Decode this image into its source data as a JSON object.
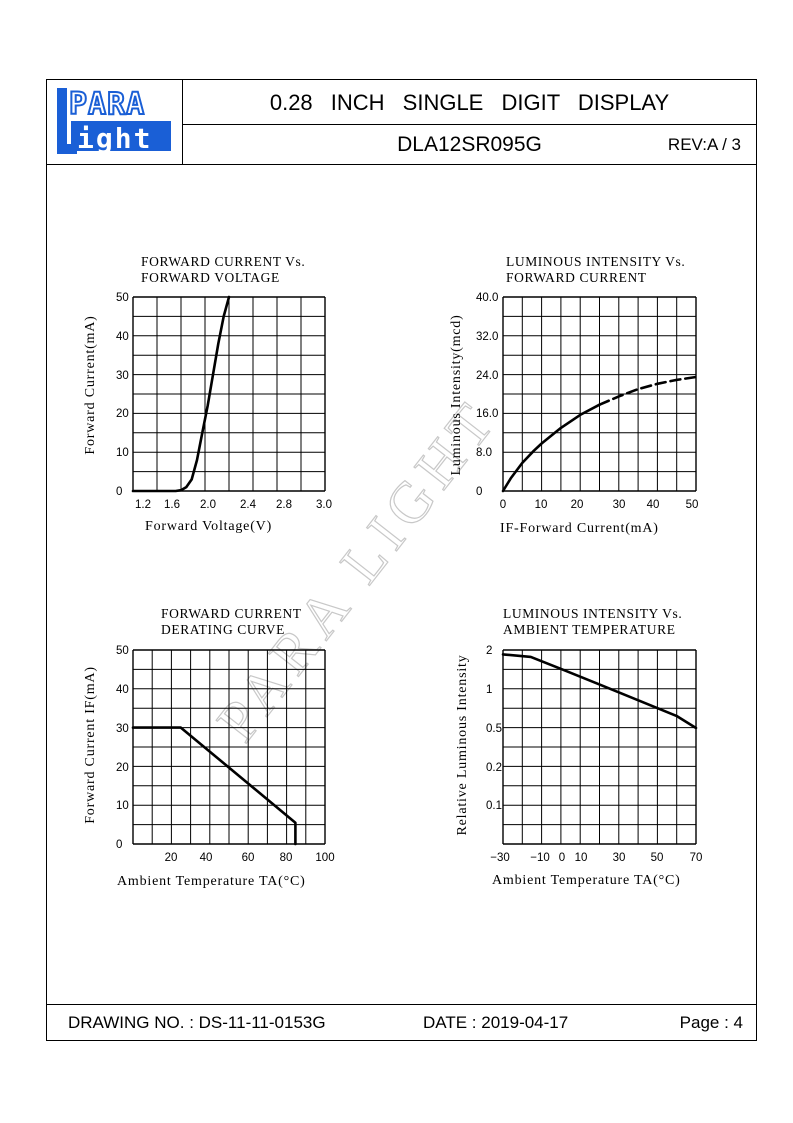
{
  "header": {
    "logo_line1": "PARA",
    "logo_line2": "ight",
    "title": "0.28 INCH SINGLE DIGIT DISPLAY",
    "part_number": "DLA12SR095G",
    "revision": "REV:A / 3"
  },
  "watermark": "PARA LIGHT",
  "footer": {
    "drawing_no": "DRAWING NO. : DS-11-11-0153G",
    "date": "DATE : 2019-04-17",
    "page": "Page : 4"
  },
  "colors": {
    "line": "#000000",
    "logo_blue": "#1a5fd6",
    "watermark": "#cccccc"
  },
  "chart_data": [
    {
      "type": "line",
      "title": "FORWARD CURRENT Vs.\nFORWARD VOLTAGE",
      "title_lines": [
        "FORWARD CURRENT Vs.",
        "FORWARD VOLTAGE"
      ],
      "xlabel": "Forward Voltage(V)",
      "ylabel": "Forward Current(mA)",
      "xticks": [
        "1.2",
        "1.6",
        "2.0",
        "2.4",
        "2.8",
        "3.0"
      ],
      "yticks": [
        "0",
        "10",
        "20",
        "30",
        "40",
        "50"
      ],
      "xlim": [
        1.2,
        3.0
      ],
      "ylim": [
        0,
        50
      ],
      "grid": true,
      "series": [
        {
          "x": [
            1.2,
            1.3,
            1.4,
            1.5,
            1.6,
            1.65,
            1.7,
            1.75,
            1.8,
            1.85,
            1.9,
            1.95,
            2.0,
            2.05,
            2.1
          ],
          "y": [
            0,
            0,
            0,
            0,
            0,
            0.2,
            1,
            3,
            8,
            15,
            22,
            30,
            38,
            45,
            50
          ]
        }
      ]
    },
    {
      "type": "line",
      "title": "LUMINOUS INTENSITY Vs.\nFORWARD CURRENT",
      "title_lines": [
        "LUMINOUS INTENSITY Vs.",
        "FORWARD CURRENT"
      ],
      "xlabel": "IF-Forward Current(mA)",
      "ylabel": "Luminous Intensity(mcd)",
      "xticks": [
        "0",
        "10",
        "20",
        "30",
        "40",
        "50"
      ],
      "yticks": [
        "0",
        "8.0",
        "16.0",
        "24.0",
        "32.0",
        "40.0"
      ],
      "xlim": [
        0,
        50
      ],
      "ylim": [
        0,
        40
      ],
      "grid": true,
      "series": [
        {
          "style": "solid",
          "x": [
            0,
            2,
            5,
            8,
            10,
            15,
            20,
            25
          ],
          "y": [
            0,
            2.6,
            5.8,
            8.3,
            9.8,
            13.0,
            15.7,
            17.8
          ]
        },
        {
          "style": "dashed",
          "x": [
            25,
            30,
            35,
            40,
            45,
            50
          ],
          "y": [
            17.8,
            19.5,
            21.0,
            22.1,
            22.9,
            23.5
          ]
        }
      ]
    },
    {
      "type": "line",
      "title": "FORWARD CURRENT\nDERATING CURVE",
      "title_lines": [
        "FORWARD CURRENT",
        "DERATING CURVE"
      ],
      "xlabel": "Ambient Temperature TA(°C)",
      "ylabel": "Forward Current IF(mA)",
      "xticks": [
        "20",
        "40",
        "60",
        "80",
        "100"
      ],
      "yticks": [
        "0",
        "10",
        "20",
        "30",
        "40",
        "50"
      ],
      "xlim": [
        0,
        100
      ],
      "ylim": [
        0,
        50
      ],
      "grid": true,
      "series": [
        {
          "x": [
            0,
            25,
            85,
            85
          ],
          "y": [
            30,
            30,
            5.5,
            0
          ]
        }
      ]
    },
    {
      "type": "line",
      "title": "LUMINOUS INTENSITY Vs.\nAMBIENT TEMPERATURE",
      "title_lines": [
        "LUMINOUS INTENSITY Vs.",
        "AMBIENT TEMPERATURE"
      ],
      "xlabel": "Ambient Temperature TA(°C)",
      "ylabel": "Relative Luminous Intensity",
      "xticks": [
        "−30",
        "−10",
        "0",
        "10",
        "30",
        "50",
        "70"
      ],
      "yticks": [
        "0.1",
        "0.2",
        "0.5",
        "1",
        "2"
      ],
      "yscale": "log",
      "xlim": [
        -30,
        70
      ],
      "grid": true,
      "series": [
        {
          "x": [
            -30,
            -15,
            0,
            20,
            40,
            60,
            70
          ],
          "y": [
            1.85,
            1.77,
            1.42,
            1.08,
            0.82,
            0.62,
            0.5
          ]
        }
      ]
    }
  ]
}
